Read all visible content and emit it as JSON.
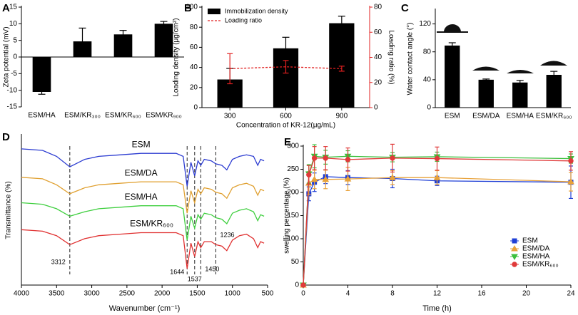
{
  "chart_data": [
    {
      "type": "bar",
      "panel_label": "A",
      "y_label": "Zeta potential (mV)",
      "categories": [
        "ESM/HA",
        "ESM/KR₃₀₀",
        "ESM/KR₆₀₀",
        "ESM/KR₉₀₀"
      ],
      "values": [
        -10.5,
        4.7,
        6.8,
        10.0
      ],
      "errors": [
        0.7,
        4.0,
        1.2,
        0.7
      ],
      "color": "#000000",
      "ylim": [
        -15,
        15
      ],
      "yticks": [
        -15,
        -10,
        -5,
        0,
        5,
        10,
        15
      ]
    },
    {
      "type": "combo",
      "panel_label": "B",
      "x_label": "Concentration of KR-12(μg/mL)",
      "y_label": "Loading density (μg/cm²)",
      "y2_label": "Loading ratio (%)",
      "categories": [
        "300",
        "600",
        "900"
      ],
      "series": [
        {
          "name": "Immobilization density",
          "type": "bar",
          "color": "#000000",
          "values": [
            28,
            59,
            84
          ],
          "errors": [
            11,
            11,
            7
          ]
        },
        {
          "name": "Loading ratio",
          "type": "line",
          "axis": "y2",
          "color": "#e02020",
          "values": [
            31,
            32.5,
            31
          ],
          "errors": [
            12,
            5,
            2
          ]
        }
      ],
      "ylim": [
        0,
        100
      ],
      "yticks": [
        0,
        20,
        40,
        60,
        80,
        100
      ],
      "y2lim": [
        0,
        80
      ],
      "y2ticks": [
        0,
        20,
        40,
        60,
        80
      ],
      "legend": "upper-left"
    },
    {
      "type": "bar",
      "panel_label": "C",
      "y_label": "Water contact angle (°)",
      "categories": [
        "ESM",
        "ESM/DA",
        "ESM/HA",
        "ESM/KR₆₀₀"
      ],
      "values": [
        89,
        40,
        36,
        47
      ],
      "errors": [
        4,
        1,
        3,
        5
      ],
      "color": "#000000",
      "ylim": [
        0,
        140
      ],
      "yticks": [
        0,
        40,
        80,
        120
      ]
    },
    {
      "type": "line",
      "panel_label": "D",
      "x_label": "Wavenumber (cm⁻¹)",
      "y_label": "Transmittance (%)",
      "x": [
        4000,
        3700,
        3500,
        3312,
        3100,
        2900,
        2600,
        2300,
        2000,
        1800,
        1700,
        1644,
        1590,
        1537,
        1490,
        1450,
        1400,
        1300,
        1236,
        1150,
        1080,
        1000,
        900,
        800,
        700,
        640,
        600,
        550
      ],
      "xlim": [
        4000,
        500
      ],
      "xticks": [
        4000,
        3500,
        3000,
        2500,
        2000,
        1500,
        1000,
        500
      ],
      "ylim": [
        0,
        100
      ],
      "series": [
        {
          "name": "ESM",
          "color": "#2b3bd1",
          "values": [
            91,
            90,
            86,
            79,
            84,
            86,
            87,
            88,
            88,
            88,
            86,
            66,
            82,
            73,
            83,
            80,
            84,
            83,
            81,
            80,
            77,
            84,
            86,
            87,
            86,
            80,
            84,
            83
          ]
        },
        {
          "name": "ESM/DA",
          "color": "#e0a030",
          "values": [
            72,
            71,
            67,
            61,
            65,
            67,
            68,
            69,
            69,
            69,
            67,
            48,
            63,
            55,
            64,
            61,
            65,
            64,
            62,
            61,
            58,
            65,
            67,
            68,
            66,
            60,
            64,
            63
          ]
        },
        {
          "name": "ESM/HA",
          "color": "#3fcf3f",
          "values": [
            55,
            54,
            51,
            46,
            49,
            51,
            52,
            53,
            53,
            53,
            51,
            30,
            46,
            38,
            47,
            44,
            48,
            47,
            45,
            44,
            41,
            48,
            50,
            51,
            49,
            43,
            47,
            46
          ]
        },
        {
          "name": "ESM/KR₆₀₀",
          "color": "#e03030",
          "values": [
            37,
            36,
            33,
            27,
            31,
            33,
            34,
            35,
            35,
            35,
            33,
            11,
            28,
            19,
            29,
            25,
            29,
            29,
            27,
            26,
            23,
            30,
            33,
            34,
            31,
            25,
            29,
            28
          ]
        }
      ],
      "peaks": [
        3312,
        1644,
        1537,
        1450,
        1236
      ],
      "legend": "inline"
    },
    {
      "type": "line",
      "panel_label": "E",
      "x_label": "Time (h)",
      "y_label": "swelling percentage (%)",
      "x": [
        0,
        0.5,
        1,
        2,
        4,
        8,
        12,
        24
      ],
      "xlim": [
        0,
        24
      ],
      "xticks": [
        0,
        4,
        8,
        12,
        16,
        20,
        24
      ],
      "ylim": [
        0,
        300
      ],
      "yticks": [
        0,
        50,
        100,
        150,
        200,
        250,
        300
      ],
      "series": [
        {
          "name": "ESM",
          "color": "#1f3fd6",
          "marker": "square",
          "values": [
            0,
            197,
            222,
            234,
            232,
            230,
            225,
            222
          ],
          "errors": [
            0,
            15,
            20,
            15,
            15,
            20,
            10,
            35
          ]
        },
        {
          "name": "ESM/DA",
          "color": "#e8a23a",
          "marker": "triangle",
          "values": [
            0,
            220,
            228,
            228,
            229,
            232,
            232,
            223
          ],
          "errors": [
            0,
            25,
            20,
            20,
            25,
            15,
            15,
            20
          ]
        },
        {
          "name": "ESM/HA",
          "color": "#3cbf3c",
          "marker": "triangle-down",
          "values": [
            0,
            240,
            278,
            276,
            278,
            276,
            277,
            273
          ],
          "errors": [
            0,
            20,
            25,
            15,
            12,
            10,
            10,
            10
          ]
        },
        {
          "name": "ESM/KR₆₀₀",
          "color": "#e03a3a",
          "marker": "circle",
          "values": [
            0,
            238,
            274,
            274,
            271,
            274,
            273,
            268
          ],
          "errors": [
            0,
            20,
            25,
            25,
            25,
            30,
            25,
            20
          ]
        }
      ],
      "legend": "lower-right"
    }
  ]
}
